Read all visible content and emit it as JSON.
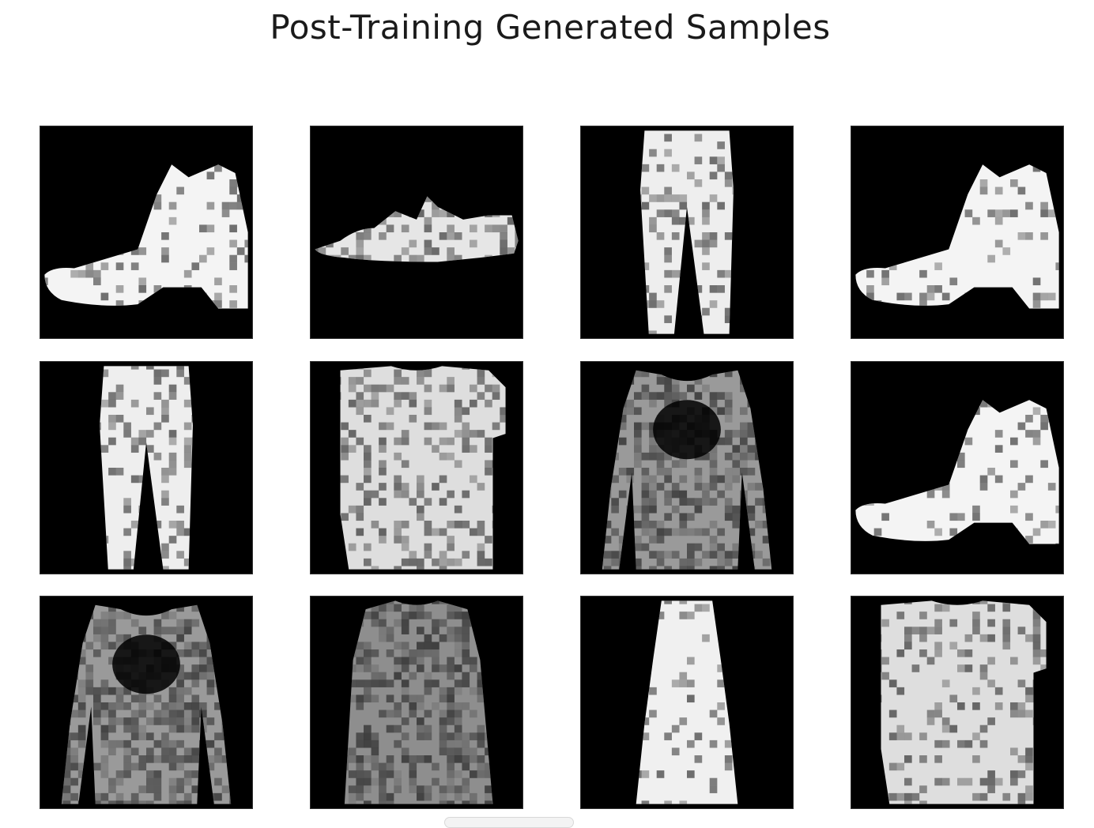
{
  "figure": {
    "title": "Post-Training Generated Samples",
    "background_color": "#ffffff",
    "colormap": "gray",
    "grid": {
      "rows": 3,
      "columns": 4
    },
    "samples": [
      {
        "row": 1,
        "col": 1,
        "content": "ankle-boot",
        "icon": "ankle-boot-icon"
      },
      {
        "row": 1,
        "col": 2,
        "content": "sneaker",
        "icon": "sneaker-icon"
      },
      {
        "row": 1,
        "col": 3,
        "content": "trouser",
        "icon": "trouser-icon"
      },
      {
        "row": 1,
        "col": 4,
        "content": "ankle-boot",
        "icon": "ankle-boot-icon"
      },
      {
        "row": 2,
        "col": 1,
        "content": "trouser",
        "icon": "trouser-icon"
      },
      {
        "row": 2,
        "col": 2,
        "content": "t-shirt",
        "icon": "tshirt-icon"
      },
      {
        "row": 2,
        "col": 3,
        "content": "pullover",
        "icon": "pullover-icon"
      },
      {
        "row": 2,
        "col": 4,
        "content": "ankle-boot",
        "icon": "ankle-boot-icon"
      },
      {
        "row": 3,
        "col": 1,
        "content": "pullover",
        "icon": "pullover-icon"
      },
      {
        "row": 3,
        "col": 2,
        "content": "coat",
        "icon": "coat-icon"
      },
      {
        "row": 3,
        "col": 3,
        "content": "dress",
        "icon": "dress-icon"
      },
      {
        "row": 3,
        "col": 4,
        "content": "t-shirt",
        "icon": "tshirt-icon"
      }
    ]
  }
}
